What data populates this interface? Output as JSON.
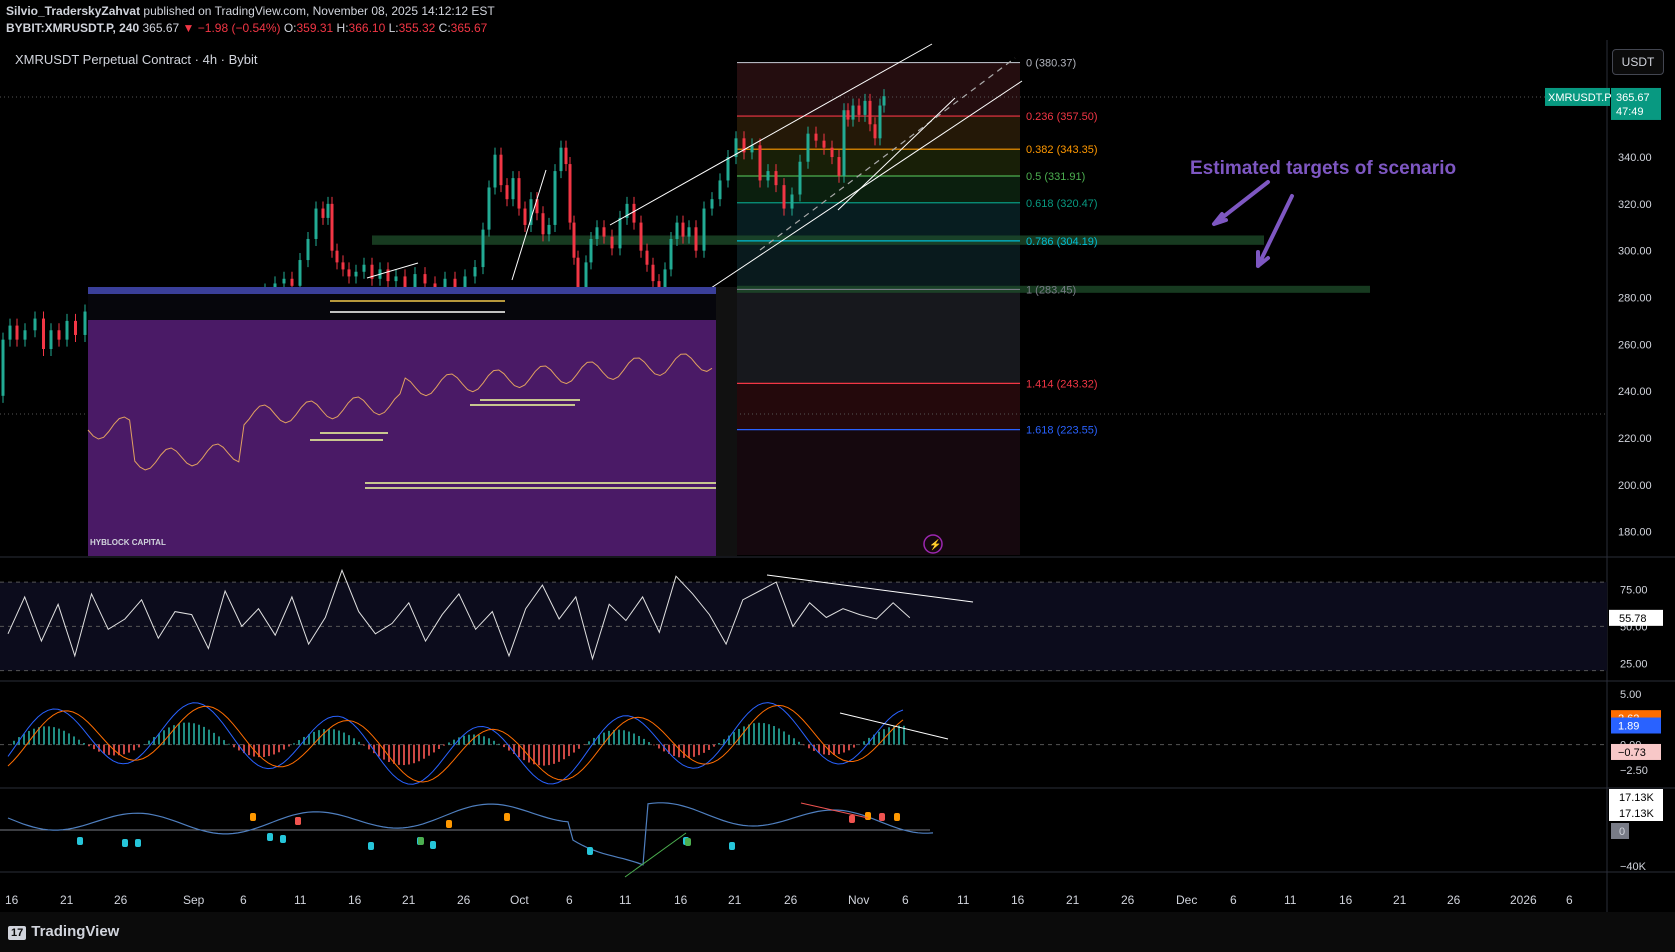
{
  "header": {
    "user": "Silvio_TraderskyZahvat",
    "published": " published on TradingView.com, November 08, 2025 14:12:12 EST",
    "symbol": "BYBIT:XMRUSDT.P, 240",
    "last": "365.67",
    "change": "▼ −1.98 (−0.54%)",
    "o_label": "O:",
    "o": "359.31",
    "h_label": "H:",
    "h": "366.10",
    "l_label": "L:",
    "l": "355.32",
    "c_label": "C:",
    "c": "365.67"
  },
  "main_title": "XMRUSDT Perpetual Contract · 4h · Bybit",
  "currency_button": "USDT",
  "price_badge": {
    "symbol": "XMRUSDT.P",
    "price": "365.67",
    "countdown": "47:49"
  },
  "annotation": "Estimated targets of scenario",
  "inset_label": "HYBLOCK CAPITAL",
  "footer": {
    "logo_mark": "17",
    "logo": "TradingView"
  },
  "colors": {
    "up": "#22ab94",
    "down": "#f23645",
    "annotation": "#7e57c2",
    "inset_bg": "#4a1a66",
    "accent_blue": "#2962ff"
  },
  "chart_data": [
    {
      "type": "candlestick",
      "title": "XMRUSDT Perpetual Contract · 4h · Bybit",
      "ylim": [
        170,
        390
      ],
      "y_ticks": [
        "340.00",
        "320.00",
        "300.00",
        "280.00",
        "260.00",
        "240.00",
        "220.00",
        "200.00",
        "180.00"
      ],
      "y_tick_values": [
        340,
        320,
        300,
        280,
        260,
        240,
        220,
        200,
        180
      ],
      "x_ticks": [
        "16",
        "21",
        "26",
        "Sep",
        "6",
        "11",
        "16",
        "21",
        "26",
        "Oct",
        "6",
        "11",
        "16",
        "21",
        "26",
        "Nov",
        "6",
        "11",
        "16",
        "21",
        "26",
        "Dec",
        "6",
        "11",
        "16",
        "21",
        "26",
        "2026",
        "6"
      ],
      "path_points": [
        [
          0,
          238
        ],
        [
          6,
          262
        ],
        [
          14,
          268
        ],
        [
          20,
          262
        ],
        [
          30,
          266
        ],
        [
          40,
          271
        ],
        [
          47,
          258
        ],
        [
          55,
          266
        ],
        [
          63,
          262
        ],
        [
          71,
          270
        ],
        [
          80,
          264
        ],
        [
          90,
          274
        ],
        [
          100,
          270
        ],
        [
          110,
          266
        ],
        [
          120,
          260
        ],
        [
          130,
          264
        ],
        [
          140,
          258
        ],
        [
          150,
          261
        ],
        [
          160,
          263
        ],
        [
          170,
          265
        ],
        [
          180,
          268
        ],
        [
          190,
          271
        ],
        [
          200,
          270
        ],
        [
          210,
          272
        ],
        [
          220,
          273
        ],
        [
          230,
          275
        ],
        [
          240,
          278
        ],
        [
          250,
          280
        ],
        [
          260,
          279
        ],
        [
          270,
          283
        ],
        [
          280,
          286
        ],
        [
          288,
          288
        ],
        [
          296,
          285
        ],
        [
          304,
          296
        ],
        [
          312,
          305
        ],
        [
          320,
          318
        ],
        [
          326,
          314
        ],
        [
          330,
          320
        ],
        [
          334,
          300
        ],
        [
          340,
          295
        ],
        [
          346,
          292
        ],
        [
          352,
          289
        ],
        [
          360,
          291
        ],
        [
          368,
          294
        ],
        [
          376,
          288
        ],
        [
          384,
          292
        ],
        [
          392,
          287
        ],
        [
          400,
          289
        ],
        [
          410,
          283
        ],
        [
          420,
          290
        ],
        [
          430,
          286
        ],
        [
          440,
          283
        ],
        [
          450,
          288
        ],
        [
          460,
          284
        ],
        [
          470,
          289
        ],
        [
          480,
          293
        ],
        [
          486,
          309
        ],
        [
          492,
          327
        ],
        [
          498,
          341
        ],
        [
          504,
          328
        ],
        [
          510,
          322
        ],
        [
          516,
          331
        ],
        [
          522,
          318
        ],
        [
          528,
          311
        ],
        [
          534,
          322
        ],
        [
          540,
          316
        ],
        [
          546,
          307
        ],
        [
          552,
          311
        ],
        [
          558,
          334
        ],
        [
          564,
          344
        ],
        [
          568,
          337
        ],
        [
          572,
          312
        ],
        [
          576,
          297
        ],
        [
          580,
          280
        ],
        [
          584,
          255
        ],
        [
          588,
          295
        ],
        [
          594,
          305
        ],
        [
          600,
          310
        ],
        [
          608,
          306
        ],
        [
          616,
          301
        ],
        [
          624,
          314
        ],
        [
          630,
          320
        ],
        [
          638,
          312
        ],
        [
          644,
          300
        ],
        [
          650,
          294
        ],
        [
          656,
          287
        ],
        [
          662,
          283
        ],
        [
          668,
          292
        ],
        [
          674,
          305
        ],
        [
          680,
          312
        ],
        [
          686,
          306
        ],
        [
          692,
          310
        ],
        [
          700,
          300
        ],
        [
          708,
          318
        ],
        [
          716,
          322
        ],
        [
          724,
          330
        ],
        [
          732,
          340
        ],
        [
          740,
          348
        ],
        [
          748,
          342
        ],
        [
          756,
          345
        ],
        [
          764,
          330
        ],
        [
          772,
          334
        ],
        [
          780,
          328
        ],
        [
          788,
          318
        ],
        [
          796,
          324
        ],
        [
          804,
          338
        ],
        [
          812,
          350
        ],
        [
          820,
          347
        ],
        [
          828,
          344
        ],
        [
          836,
          340
        ],
        [
          842,
          332
        ],
        [
          846,
          360
        ],
        [
          850,
          356
        ],
        [
          856,
          362
        ],
        [
          862,
          358
        ],
        [
          868,
          364
        ],
        [
          872,
          354
        ],
        [
          878,
          348
        ],
        [
          882,
          362
        ],
        [
          886,
          366
        ]
      ],
      "fib_levels": [
        {
          "label": "0 (380.37)",
          "ratio": "0",
          "value": 380.37,
          "color": "#b2b5be"
        },
        {
          "label": "0.236 (357.50)",
          "ratio": "0.236",
          "value": 357.5,
          "color": "#f23645"
        },
        {
          "label": "0.382 (343.35)",
          "ratio": "0.382",
          "value": 343.35,
          "color": "#ff9800"
        },
        {
          "label": "0.5 (331.91)",
          "ratio": "0.5",
          "value": 331.91,
          "color": "#4caf50"
        },
        {
          "label": "0.618 (320.47)",
          "ratio": "0.618",
          "value": 320.47,
          "color": "#089981"
        },
        {
          "label": "0.786 (304.19)",
          "ratio": "0.786",
          "value": 304.19,
          "color": "#00bcd4"
        },
        {
          "label": "1 (283.45)",
          "ratio": "1",
          "value": 283.45,
          "color": "#787b86"
        },
        {
          "label": "1.414 (243.32)",
          "ratio": "1.414",
          "value": 243.32,
          "color": "#f23645"
        },
        {
          "label": "1.618 (223.55)",
          "ratio": "1.618",
          "value": 223.55,
          "color": "#2962ff"
        }
      ],
      "target_zones": [
        {
          "low": 302.5,
          "high": 306.5
        },
        {
          "low": 282,
          "high": 285
        }
      ],
      "last_price": 365.67
    },
    {
      "type": "line",
      "panel": "RSI",
      "ylim": [
        15,
        95
      ],
      "y_ticks": [
        "75.00",
        "50.00",
        "25.00"
      ],
      "y_tick_values": [
        75,
        50,
        25
      ],
      "guides": [
        80,
        50,
        20
      ],
      "last_value": "55.78",
      "values_sample": [
        45,
        70,
        40,
        65,
        30,
        72,
        48,
        55,
        68,
        42,
        60,
        58,
        35,
        74,
        50,
        62,
        44,
        70,
        38,
        56,
        88,
        60,
        45,
        52,
        66,
        40,
        58,
        72,
        48,
        60,
        30,
        62,
        78,
        55,
        70,
        28,
        65,
        54,
        70,
        46,
        84,
        72,
        58,
        38,
        68,
        74,
        80,
        50,
        66,
        56,
        62,
        58,
        55,
        66,
        55.78
      ]
    },
    {
      "type": "bar",
      "panel": "MACD",
      "ylim": [
        -4,
        6
      ],
      "y_ticks": [
        "5.00",
        "0.00",
        "−2.50"
      ],
      "y_tick_values": [
        5,
        0,
        -2.5
      ],
      "labels": [
        "2.62",
        "1.89",
        "−0.73"
      ],
      "label_values": [
        2.62,
        1.89,
        -0.73
      ]
    },
    {
      "type": "line",
      "panel": "Volume oscillator",
      "y_ticks": [
        "17.13K",
        "17.13K",
        "0",
        "−40K"
      ],
      "y_tick_values": [
        17130,
        17130,
        0,
        -40000
      ]
    }
  ]
}
